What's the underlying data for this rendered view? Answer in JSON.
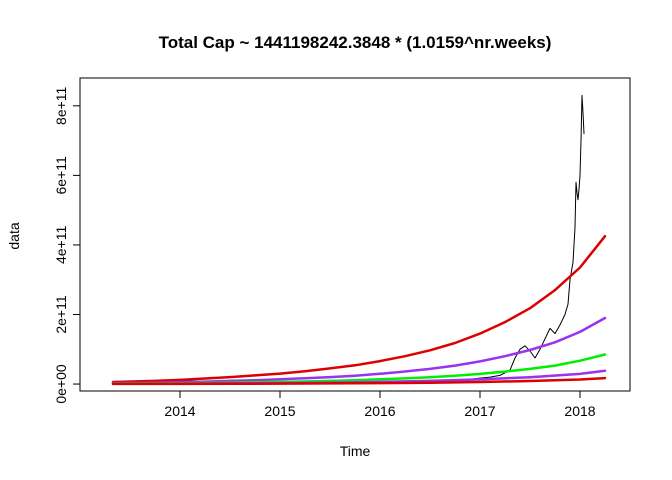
{
  "chart_data": {
    "type": "line",
    "title": "Total Cap ~ 1441198242.3848 * (1.0159^nr.weeks)",
    "xlabel": "Time",
    "ylabel": "data",
    "xlim": [
      2013.0,
      2018.5
    ],
    "ylim": [
      -20000000000,
      880000000000
    ],
    "x_ticks": [
      {
        "value": 2014,
        "label": "2014"
      },
      {
        "value": 2015,
        "label": "2015"
      },
      {
        "value": 2016,
        "label": "2016"
      },
      {
        "value": 2017,
        "label": "2017"
      },
      {
        "value": 2018,
        "label": "2018"
      }
    ],
    "y_ticks": [
      {
        "value": 0,
        "label": "0e+00"
      },
      {
        "value": 200000000000,
        "label": "2e+11"
      },
      {
        "value": 400000000000,
        "label": "4e+11"
      },
      {
        "value": 600000000000,
        "label": "6e+11"
      },
      {
        "value": 800000000000,
        "label": "8e+11"
      }
    ],
    "grid": false,
    "series": [
      {
        "color": "#000000",
        "width": 1,
        "x": [
          2013.33,
          2013.5,
          2013.75,
          2014.0,
          2014.25,
          2014.5,
          2014.75,
          2015.0,
          2015.25,
          2015.5,
          2015.75,
          2016.0,
          2016.25,
          2016.5,
          2016.75,
          2016.9,
          2017.0,
          2017.1,
          2017.2,
          2017.3,
          2017.35,
          2017.4,
          2017.45,
          2017.5,
          2017.55,
          2017.6,
          2017.65,
          2017.7,
          2017.75,
          2017.8,
          2017.85,
          2017.88,
          2017.9,
          2017.93,
          2017.95,
          2017.96,
          2017.97,
          2017.98,
          2017.99,
          2018.0,
          2018.01,
          2018.02,
          2018.03,
          2018.04
        ],
        "values": [
          1500000000,
          1200000000,
          2000000000,
          10000000000,
          7000000000,
          6000000000,
          5000000000,
          4000000000,
          3500000000,
          3500000000,
          4000000000,
          6000000000,
          7000000000,
          9000000000,
          11000000000,
          14000000000,
          17000000000,
          20000000000,
          25000000000,
          40000000000,
          75000000000,
          100000000000,
          110000000000,
          95000000000,
          75000000000,
          100000000000,
          130000000000,
          160000000000,
          145000000000,
          170000000000,
          200000000000,
          230000000000,
          300000000000,
          350000000000,
          450000000000,
          580000000000,
          550000000000,
          530000000000,
          560000000000,
          600000000000,
          700000000000,
          830000000000,
          780000000000,
          720000000000
        ]
      },
      {
        "color": "#dd0000",
        "width": 2.5,
        "x": [
          2013.33,
          2013.75,
          2014.0,
          2014.25,
          2014.5,
          2014.75,
          2015.0,
          2015.25,
          2015.5,
          2015.75,
          2016.0,
          2016.25,
          2016.5,
          2016.75,
          2017.0,
          2017.25,
          2017.5,
          2017.75,
          2018.0,
          2018.25
        ],
        "values": [
          6000000000,
          9000000000,
          12000000000,
          16000000000,
          20000000000,
          25000000000,
          30000000000,
          37000000000,
          45000000000,
          54000000000,
          66000000000,
          80000000000,
          97000000000,
          118000000000,
          145000000000,
          178000000000,
          218000000000,
          270000000000,
          335000000000,
          425000000000
        ]
      },
      {
        "color": "#9933ee",
        "width": 2.5,
        "x": [
          2013.33,
          2013.75,
          2014.0,
          2014.25,
          2014.5,
          2014.75,
          2015.0,
          2015.25,
          2015.5,
          2015.75,
          2016.0,
          2016.25,
          2016.5,
          2016.75,
          2017.0,
          2017.25,
          2017.5,
          2017.75,
          2018.0,
          2018.25
        ],
        "values": [
          3000000000,
          4000000000,
          5500000000,
          7000000000,
          9000000000,
          11000000000,
          13500000000,
          16500000000,
          20000000000,
          24000000000,
          29500000000,
          36000000000,
          43500000000,
          53000000000,
          65000000000,
          80000000000,
          98000000000,
          120000000000,
          150000000000,
          190000000000
        ]
      },
      {
        "color": "#00ee00",
        "width": 2.5,
        "x": [
          2013.33,
          2013.75,
          2014.0,
          2014.25,
          2014.5,
          2014.75,
          2015.0,
          2015.25,
          2015.5,
          2015.75,
          2016.0,
          2016.25,
          2016.5,
          2016.75,
          2017.0,
          2017.25,
          2017.5,
          2017.75,
          2018.0,
          2018.25
        ],
        "values": [
          1500000000,
          2000000000,
          2500000000,
          3300000000,
          4100000000,
          5000000000,
          6100000000,
          7400000000,
          9000000000,
          11000000000,
          13500000000,
          16300000000,
          19800000000,
          24000000000,
          29300000000,
          35800000000,
          43500000000,
          53000000000,
          67000000000,
          85000000000
        ]
      },
      {
        "color": "#9933ee",
        "width": 2.5,
        "x": [
          2013.33,
          2014.0,
          2014.5,
          2015.0,
          2015.5,
          2016.0,
          2016.5,
          2017.0,
          2017.5,
          2018.0,
          2018.25
        ],
        "values": [
          700000000,
          1200000000,
          1900000000,
          2800000000,
          4200000000,
          6200000000,
          9100000000,
          13400000000,
          19800000000,
          29300000000,
          38000000000
        ]
      },
      {
        "color": "#dd0000",
        "width": 2.5,
        "x": [
          2013.33,
          2014.0,
          2014.5,
          2015.0,
          2015.5,
          2016.0,
          2016.5,
          2017.0,
          2017.5,
          2018.0,
          2018.25
        ],
        "values": [
          300000000,
          500000000,
          800000000,
          1200000000,
          1800000000,
          2700000000,
          4000000000,
          5900000000,
          8700000000,
          13000000000,
          17000000000
        ]
      }
    ]
  }
}
